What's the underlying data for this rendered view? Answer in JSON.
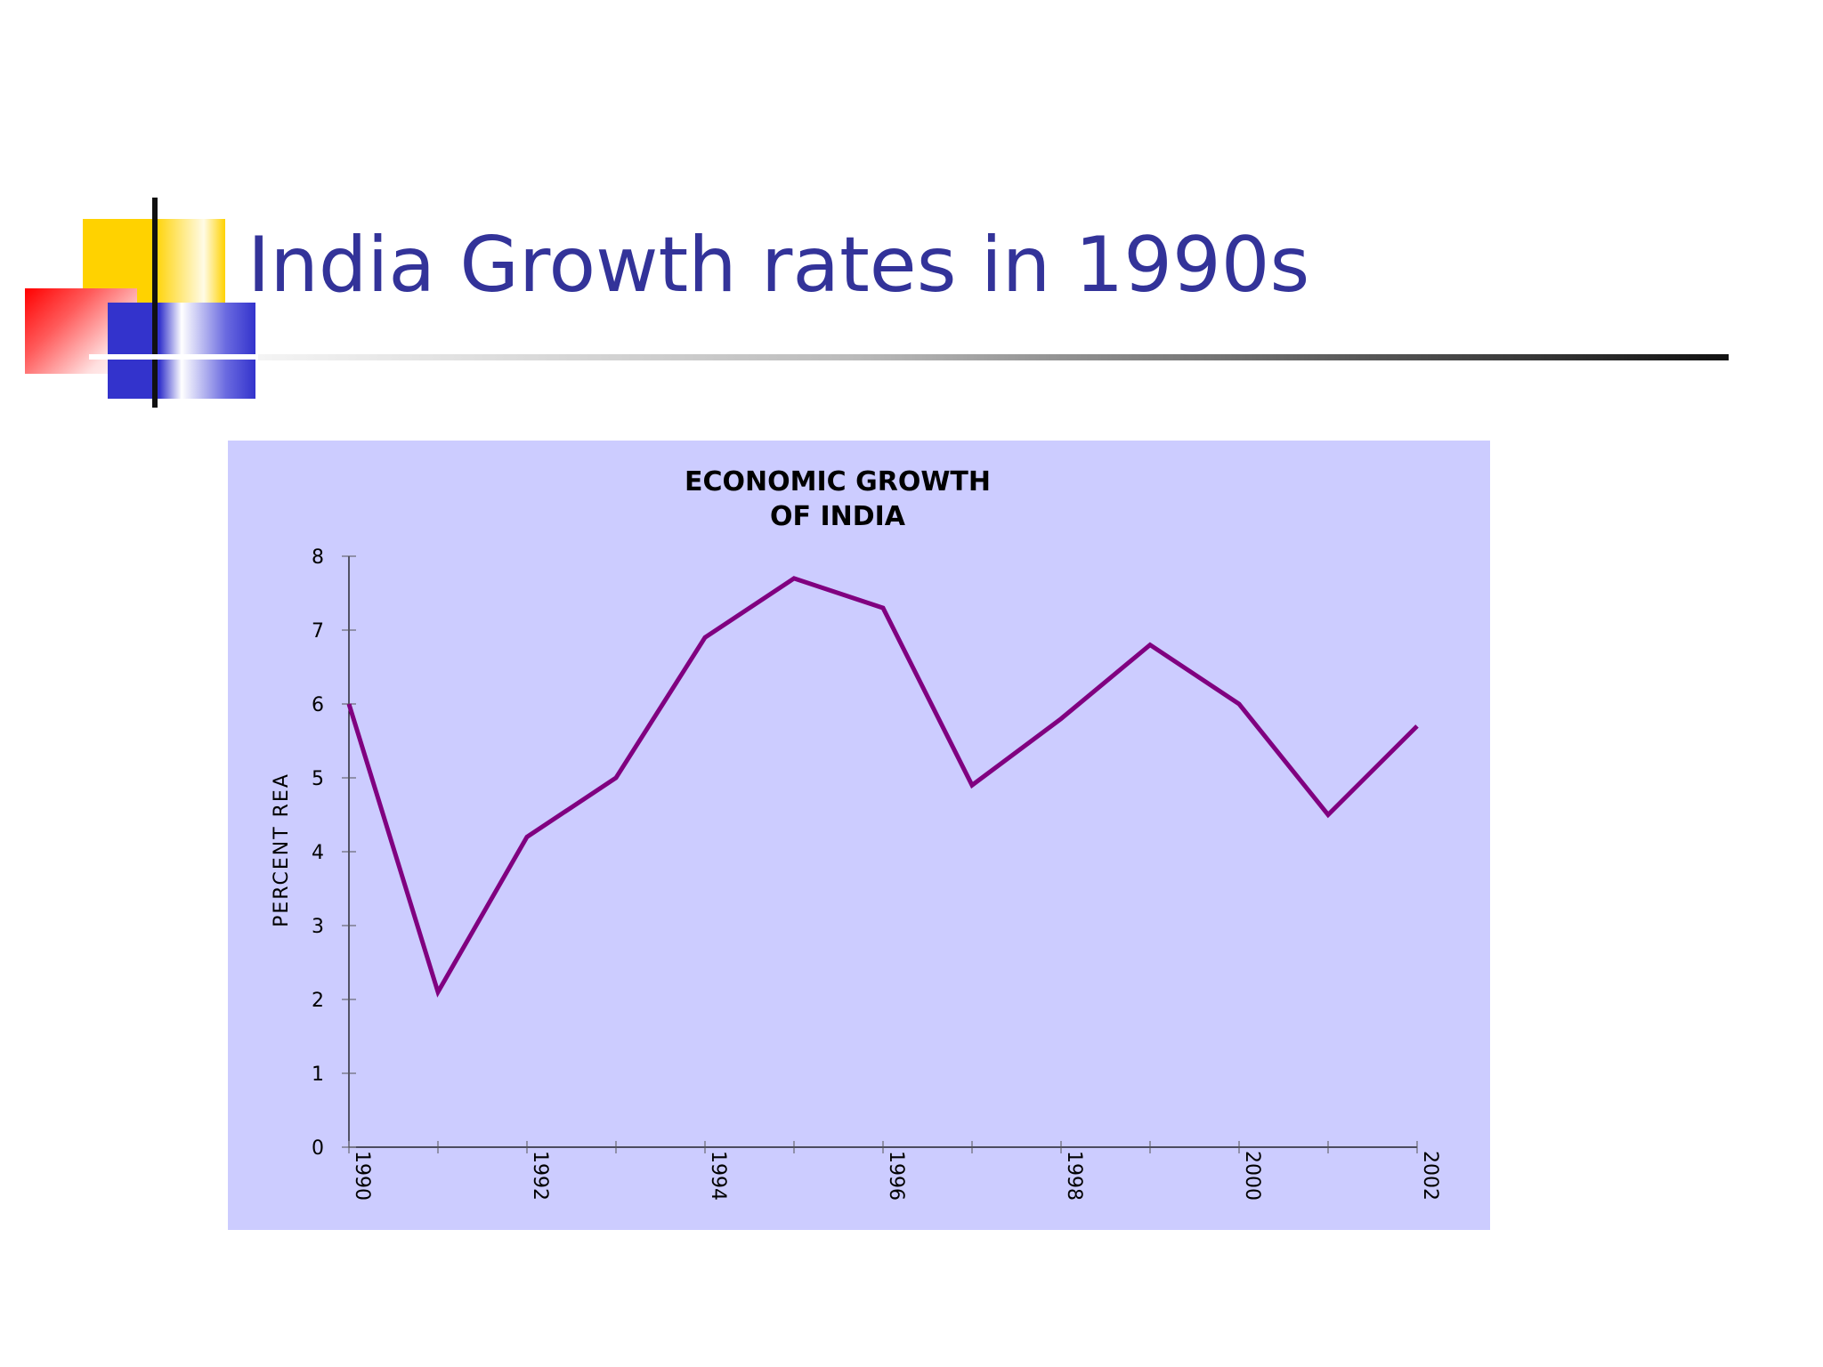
{
  "slide": {
    "title": "India Growth rates in 1990s"
  },
  "colors": {
    "title": "#333399",
    "chart_background": "#ccccff",
    "series_line": "#800080"
  },
  "chart_data": {
    "type": "line",
    "title": [
      "ECONOMIC GROWTH",
      "OF INDIA"
    ],
    "ylabel": "PERCENT REA",
    "xlabel": "",
    "x": [
      1990,
      1991,
      1992,
      1993,
      1994,
      1995,
      1996,
      1997,
      1998,
      1999,
      2000,
      2001,
      2002
    ],
    "x_tick_labels": [
      "1990",
      "1992",
      "1994",
      "1996",
      "1998",
      "2000",
      "2002"
    ],
    "y_tick_labels": [
      "0",
      "1",
      "2",
      "3",
      "4",
      "5",
      "6",
      "7",
      "8"
    ],
    "series": [
      {
        "values": [
          6.0,
          2.1,
          4.2,
          5.0,
          6.9,
          7.7,
          7.3,
          4.9,
          5.8,
          6.8,
          6.0,
          4.5,
          5.7
        ]
      }
    ],
    "xlim": [
      1990,
      2002
    ],
    "ylim": [
      0,
      8
    ],
    "grid": false,
    "legend": "none"
  }
}
